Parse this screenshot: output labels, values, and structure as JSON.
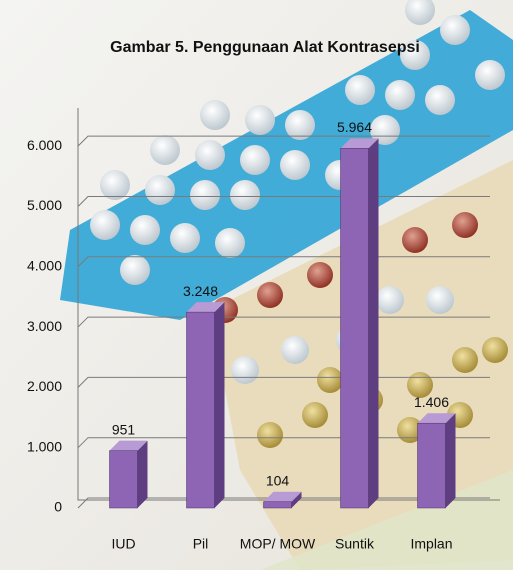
{
  "chart_data": {
    "type": "bar3d",
    "title": "Gambar 5. Penggunaan Alat Kontrasepsi",
    "categories": [
      "IUD",
      "Pil",
      "MOP/ MOW",
      "Suntik",
      "Implan"
    ],
    "values": [
      951,
      3248,
      104,
      5964,
      1406
    ],
    "value_labels": [
      "951",
      "3.248",
      "104",
      "5.964",
      "1.406"
    ],
    "color": "#8e64b4",
    "ylim": [
      0,
      6500
    ],
    "yticks": [
      0,
      {
        "value": 1000,
        "label": "1.000"
      },
      {
        "value": 2000,
        "label": "2.000"
      },
      {
        "value": 3000,
        "label": "3.000"
      },
      {
        "value": 4000,
        "label": "4.000"
      },
      {
        "value": 5000,
        "label": "5.000"
      },
      {
        "value": 6000,
        "label": "6.000"
      }
    ],
    "grid": true
  }
}
